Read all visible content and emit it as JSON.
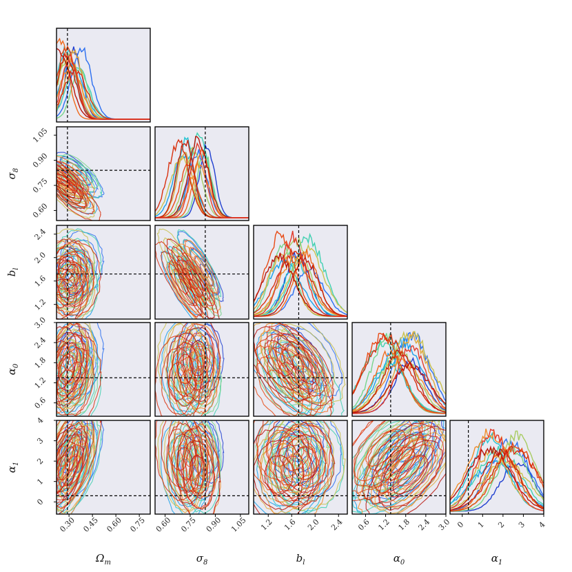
{
  "chart_data": {
    "type": "corner-plot",
    "parameters": [
      {
        "id": "Om",
        "label": "Ωm",
        "sub": "m",
        "base": "Ω",
        "range": [
          0.22,
          0.82
        ],
        "ticks": [
          0.3,
          0.45,
          0.6,
          0.75
        ],
        "tick_labels": [
          "0.30",
          "0.45",
          "0.60",
          "0.75"
        ],
        "truth": 0.29
      },
      {
        "id": "s8",
        "label": "σ8",
        "sub": "8",
        "base": "σ",
        "range": [
          0.54,
          1.1
        ],
        "ticks": [
          0.6,
          0.75,
          0.9,
          1.05
        ],
        "tick_labels": [
          "0.60",
          "0.75",
          "0.90",
          "1.05"
        ],
        "truth": 0.84
      },
      {
        "id": "bl",
        "label": "bl",
        "sub": "l",
        "base": "b",
        "range": [
          0.95,
          2.55
        ],
        "ticks": [
          1.2,
          1.6,
          2.0,
          2.4
        ],
        "tick_labels": [
          "1.2",
          "1.6",
          "2.0",
          "2.4"
        ],
        "truth": 1.72
      },
      {
        "id": "a0",
        "label": "α0",
        "sub": "0",
        "base": "α",
        "range": [
          0.2,
          3.0
        ],
        "ticks": [
          0.6,
          1.2,
          1.8,
          2.4,
          3.0
        ],
        "tick_labels": [
          "0.6",
          "1.2",
          "1.8",
          "2.4",
          "3.0"
        ],
        "y_ticks": [
          0.6,
          1.2,
          1.8,
          2.4,
          3.0
        ],
        "y_tick_labels": [
          "0.6",
          "1.2",
          "1.8",
          "2.4",
          "3.0"
        ],
        "truth": 1.35
      },
      {
        "id": "a1",
        "label": "α1",
        "sub": "1",
        "base": "α",
        "range": [
          -0.6,
          4.0
        ],
        "ticks": [
          0,
          1,
          2,
          3,
          4
        ],
        "tick_labels": [
          "0",
          "1",
          "2",
          "3",
          "4"
        ],
        "y_ticks": [
          0,
          1,
          2,
          3,
          4
        ],
        "y_tick_labels": [
          "0",
          "1",
          "2",
          "3",
          "4"
        ],
        "truth": 0.3
      }
    ],
    "n_chains": 16,
    "colors": [
      "#1f3fd0",
      "#2a6ef0",
      "#1aa0e8",
      "#22c4d4",
      "#3fd0b0",
      "#76d48a",
      "#a8cc62",
      "#c9c24e",
      "#e0a83a",
      "#f08c2a",
      "#f06a1c",
      "#e84a14",
      "#d8300e",
      "#c41f0a",
      "#b8140a",
      "#e23a2a"
    ],
    "truth_line_style": "dashed black"
  }
}
